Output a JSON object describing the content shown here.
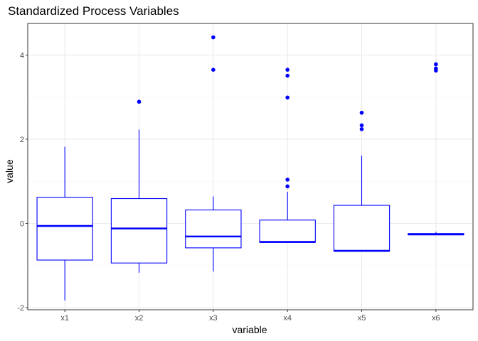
{
  "chart_data": {
    "type": "boxplot",
    "title": "Standardized Process Variables",
    "xlabel": "variable",
    "ylabel": "value",
    "ylim": [
      -2.05,
      4.75
    ],
    "y_ticks": [
      -2,
      0,
      2,
      4
    ],
    "categories": [
      "x1",
      "x2",
      "x3",
      "x4",
      "x5",
      "x6"
    ],
    "boxes": [
      {
        "name": "x1",
        "q1": -0.87,
        "median": -0.06,
        "q3": 0.62,
        "whisker_low": -1.83,
        "whisker_high": 1.82,
        "outliers": []
      },
      {
        "name": "x2",
        "q1": -0.94,
        "median": -0.12,
        "q3": 0.59,
        "whisker_low": -1.17,
        "whisker_high": 2.23,
        "outliers": [
          2.89
        ]
      },
      {
        "name": "x3",
        "q1": -0.58,
        "median": -0.31,
        "q3": 0.32,
        "whisker_low": -1.14,
        "whisker_high": 0.64,
        "outliers": [
          3.65,
          4.42
        ]
      },
      {
        "name": "x4",
        "q1": -0.45,
        "median": -0.44,
        "q3": 0.08,
        "whisker_low": -0.45,
        "whisker_high": 0.75,
        "outliers": [
          0.88,
          1.04,
          2.99,
          3.51,
          3.65
        ]
      },
      {
        "name": "x5",
        "q1": -0.66,
        "median": -0.65,
        "q3": 0.43,
        "whisker_low": -0.66,
        "whisker_high": 1.61,
        "outliers": [
          2.24,
          2.33,
          2.63
        ]
      },
      {
        "name": "x6",
        "q1": -0.27,
        "median": -0.26,
        "q3": -0.24,
        "whisker_low": -0.27,
        "whisker_high": -0.2,
        "outliers": [
          3.63,
          3.68,
          3.78
        ]
      }
    ],
    "grid": true,
    "legend": "none",
    "colors": {
      "series": "#0000ff",
      "grid": "#ebebeb",
      "panel_border": "#333333",
      "background": "#ffffff",
      "tick_label": "#4d4d4d"
    }
  }
}
